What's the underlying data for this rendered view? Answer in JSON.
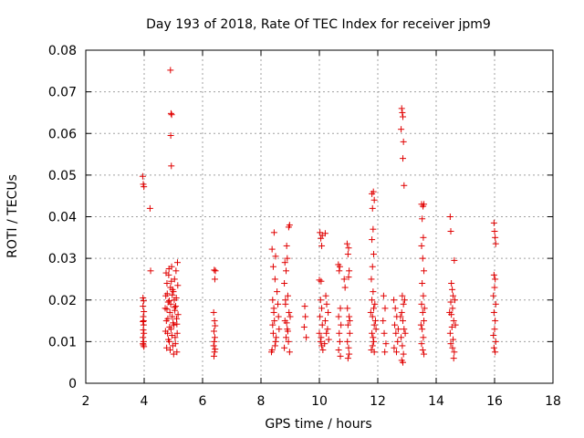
{
  "chart_data": {
    "type": "scatter",
    "title": "Day 193 of 2018, Rate Of TEC Index for receiver jpm9",
    "xlabel": "GPS time / hours",
    "ylabel": "ROTI / TECUs",
    "xlim": [
      2,
      18
    ],
    "ylim": [
      0,
      0.08
    ],
    "xticks": [
      2,
      4,
      6,
      8,
      10,
      12,
      14,
      16,
      18
    ],
    "yticks": [
      0,
      0.01,
      0.02,
      0.03,
      0.04,
      0.05,
      0.06,
      0.07,
      0.08
    ],
    "xtick_labels": [
      "2",
      "4",
      "6",
      "8",
      "10",
      "12",
      "14",
      "16",
      "18"
    ],
    "ytick_labels": [
      "0",
      "0.01",
      "0.02",
      "0.03",
      "0.04",
      "0.05",
      "0.06",
      "0.07",
      "0.08"
    ],
    "grid": true,
    "marker": "+",
    "color": "#e00000",
    "series": [
      {
        "name": "ROTI",
        "points": [
          [
            3.95,
            0.0497
          ],
          [
            3.97,
            0.0478
          ],
          [
            3.99,
            0.0472
          ],
          [
            3.96,
            0.0205
          ],
          [
            3.98,
            0.0198
          ],
          [
            3.96,
            0.0185
          ],
          [
            3.99,
            0.0172
          ],
          [
            3.97,
            0.016
          ],
          [
            3.96,
            0.0148
          ],
          [
            3.98,
            0.014
          ],
          [
            3.97,
            0.0128
          ],
          [
            3.99,
            0.012
          ],
          [
            3.96,
            0.011
          ],
          [
            3.98,
            0.01
          ],
          [
            3.97,
            0.0092
          ],
          [
            3.99,
            0.0088
          ],
          [
            3.96,
            0.0095
          ],
          [
            3.98,
            0.015
          ],
          [
            4.2,
            0.042
          ],
          [
            4.22,
            0.027
          ],
          [
            4.9,
            0.0752
          ],
          [
            4.92,
            0.0648
          ],
          [
            4.94,
            0.0645
          ],
          [
            4.91,
            0.0595
          ],
          [
            4.93,
            0.0522
          ],
          [
            4.72,
            0.018
          ],
          [
            4.74,
            0.021
          ],
          [
            4.76,
            0.015
          ],
          [
            4.78,
            0.024
          ],
          [
            4.8,
            0.012
          ],
          [
            4.82,
            0.0195
          ],
          [
            4.84,
            0.026
          ],
          [
            4.86,
            0.01
          ],
          [
            4.88,
            0.017
          ],
          [
            4.9,
            0.023
          ],
          [
            4.92,
            0.013
          ],
          [
            4.94,
            0.028
          ],
          [
            4.96,
            0.016
          ],
          [
            4.98,
            0.009
          ],
          [
            5.0,
            0.022
          ],
          [
            5.02,
            0.014
          ],
          [
            5.04,
            0.025
          ],
          [
            5.06,
            0.011
          ],
          [
            5.08,
            0.0185
          ],
          [
            5.1,
            0.0205
          ],
          [
            5.12,
            0.0075
          ],
          [
            5.14,
            0.029
          ],
          [
            5.16,
            0.0165
          ],
          [
            4.73,
            0.0125
          ],
          [
            4.75,
            0.0265
          ],
          [
            4.77,
            0.0085
          ],
          [
            4.79,
            0.0215
          ],
          [
            4.81,
            0.0155
          ],
          [
            4.83,
            0.0105
          ],
          [
            4.85,
            0.0275
          ],
          [
            4.87,
            0.0135
          ],
          [
            4.89,
            0.008
          ],
          [
            4.91,
            0.019
          ],
          [
            4.93,
            0.0245
          ],
          [
            4.95,
            0.0115
          ],
          [
            4.97,
            0.0225
          ],
          [
            4.99,
            0.0145
          ],
          [
            5.01,
            0.007
          ],
          [
            5.03,
            0.02
          ],
          [
            5.05,
            0.0175
          ],
          [
            5.07,
            0.0095
          ],
          [
            5.09,
            0.027
          ],
          [
            5.11,
            0.0155
          ],
          [
            5.13,
            0.012
          ],
          [
            5.15,
            0.0235
          ],
          [
            4.78,
            0.0178
          ],
          [
            4.86,
            0.0198
          ],
          [
            4.96,
            0.0212
          ],
          [
            5.04,
            0.0182
          ],
          [
            5.12,
            0.0142
          ],
          [
            6.4,
            0.0272
          ],
          [
            6.42,
            0.025
          ],
          [
            6.38,
            0.017
          ],
          [
            6.41,
            0.015
          ],
          [
            6.43,
            0.0138
          ],
          [
            6.39,
            0.0125
          ],
          [
            6.42,
            0.011
          ],
          [
            6.4,
            0.01
          ],
          [
            6.38,
            0.009
          ],
          [
            6.43,
            0.0082
          ],
          [
            6.41,
            0.0075
          ],
          [
            6.39,
            0.0065
          ],
          [
            6.44,
            0.027
          ],
          [
            8.38,
            0.0322
          ],
          [
            8.45,
            0.0362
          ],
          [
            8.5,
            0.0305
          ],
          [
            8.42,
            0.028
          ],
          [
            8.48,
            0.025
          ],
          [
            8.4,
            0.02
          ],
          [
            8.44,
            0.018
          ],
          [
            8.46,
            0.015
          ],
          [
            8.42,
            0.012
          ],
          [
            8.5,
            0.01
          ],
          [
            8.38,
            0.008
          ],
          [
            8.55,
            0.022
          ],
          [
            8.6,
            0.016
          ],
          [
            8.4,
            0.014
          ],
          [
            8.52,
            0.011
          ],
          [
            8.48,
            0.009
          ],
          [
            8.58,
            0.019
          ],
          [
            8.44,
            0.017
          ],
          [
            8.62,
            0.013
          ],
          [
            8.36,
            0.0075
          ],
          [
            8.82,
            0.029
          ],
          [
            8.88,
            0.033
          ],
          [
            8.95,
            0.0375
          ],
          [
            8.98,
            0.038
          ],
          [
            8.9,
            0.03
          ],
          [
            8.86,
            0.027
          ],
          [
            8.8,
            0.024
          ],
          [
            8.92,
            0.021
          ],
          [
            8.84,
            0.019
          ],
          [
            8.96,
            0.017
          ],
          [
            8.82,
            0.015
          ],
          [
            8.9,
            0.013
          ],
          [
            8.86,
            0.011
          ],
          [
            8.94,
            0.01
          ],
          [
            8.8,
            0.0085
          ],
          [
            8.98,
            0.0075
          ],
          [
            9.0,
            0.016
          ],
          [
            8.88,
            0.0145
          ],
          [
            8.92,
            0.0125
          ],
          [
            8.84,
            0.02
          ],
          [
            9.5,
            0.0185
          ],
          [
            9.52,
            0.016
          ],
          [
            9.48,
            0.0135
          ],
          [
            9.55,
            0.011
          ],
          [
            10.02,
            0.0362
          ],
          [
            10.05,
            0.0348
          ],
          [
            10.08,
            0.033
          ],
          [
            10.1,
            0.0355
          ],
          [
            10.2,
            0.036
          ],
          [
            10.0,
            0.0248
          ],
          [
            10.06,
            0.0245
          ],
          [
            10.04,
            0.02
          ],
          [
            10.08,
            0.018
          ],
          [
            10.02,
            0.016
          ],
          [
            10.1,
            0.014
          ],
          [
            10.0,
            0.012
          ],
          [
            10.06,
            0.011
          ],
          [
            10.04,
            0.01
          ],
          [
            10.08,
            0.009
          ],
          [
            10.12,
            0.008
          ],
          [
            10.22,
            0.021
          ],
          [
            10.25,
            0.019
          ],
          [
            10.3,
            0.017
          ],
          [
            10.2,
            0.015
          ],
          [
            10.28,
            0.013
          ],
          [
            10.24,
            0.012
          ],
          [
            10.32,
            0.0105
          ],
          [
            10.18,
            0.0095
          ],
          [
            10.65,
            0.0285
          ],
          [
            10.7,
            0.028
          ],
          [
            10.68,
            0.027
          ],
          [
            10.72,
            0.018
          ],
          [
            10.66,
            0.016
          ],
          [
            10.74,
            0.014
          ],
          [
            10.68,
            0.012
          ],
          [
            10.7,
            0.01
          ],
          [
            10.66,
            0.008
          ],
          [
            10.72,
            0.0065
          ],
          [
            10.85,
            0.025
          ],
          [
            10.88,
            0.023
          ],
          [
            10.95,
            0.0335
          ],
          [
            11.0,
            0.0325
          ],
          [
            10.98,
            0.031
          ],
          [
            11.02,
            0.027
          ],
          [
            11.0,
            0.0255
          ],
          [
            10.96,
            0.018
          ],
          [
            11.02,
            0.016
          ],
          [
            10.98,
            0.014
          ],
          [
            11.04,
            0.012
          ],
          [
            10.96,
            0.01
          ],
          [
            11.0,
            0.0085
          ],
          [
            11.02,
            0.007
          ],
          [
            10.98,
            0.006
          ],
          [
            11.04,
            0.015
          ],
          [
            11.8,
            0.0455
          ],
          [
            11.85,
            0.046
          ],
          [
            11.88,
            0.044
          ],
          [
            11.82,
            0.042
          ],
          [
            11.84,
            0.037
          ],
          [
            11.8,
            0.0345
          ],
          [
            11.86,
            0.031
          ],
          [
            11.82,
            0.028
          ],
          [
            11.78,
            0.025
          ],
          [
            11.84,
            0.022
          ],
          [
            11.8,
            0.02
          ],
          [
            11.86,
            0.018
          ],
          [
            11.82,
            0.016
          ],
          [
            11.88,
            0.014
          ],
          [
            11.8,
            0.012
          ],
          [
            11.84,
            0.011
          ],
          [
            11.86,
            0.01
          ],
          [
            11.82,
            0.009
          ],
          [
            11.78,
            0.008
          ],
          [
            11.88,
            0.0075
          ],
          [
            11.9,
            0.019
          ],
          [
            11.92,
            0.015
          ],
          [
            11.76,
            0.017
          ],
          [
            11.94,
            0.013
          ],
          [
            12.2,
            0.021
          ],
          [
            12.25,
            0.018
          ],
          [
            12.18,
            0.015
          ],
          [
            12.22,
            0.012
          ],
          [
            12.28,
            0.0095
          ],
          [
            12.24,
            0.0075
          ],
          [
            12.55,
            0.02
          ],
          [
            12.6,
            0.018
          ],
          [
            12.65,
            0.016
          ],
          [
            12.58,
            0.014
          ],
          [
            12.62,
            0.012
          ],
          [
            12.68,
            0.01
          ],
          [
            12.56,
            0.0085
          ],
          [
            12.64,
            0.0075
          ],
          [
            12.7,
            0.013
          ],
          [
            12.82,
            0.066
          ],
          [
            12.84,
            0.065
          ],
          [
            12.86,
            0.064
          ],
          [
            12.8,
            0.061
          ],
          [
            12.88,
            0.058
          ],
          [
            12.86,
            0.054
          ],
          [
            12.9,
            0.0475
          ],
          [
            12.84,
            0.021
          ],
          [
            12.88,
            0.019
          ],
          [
            12.82,
            0.017
          ],
          [
            12.86,
            0.015
          ],
          [
            12.9,
            0.013
          ],
          [
            12.8,
            0.011
          ],
          [
            12.84,
            0.009
          ],
          [
            12.88,
            0.007
          ],
          [
            12.82,
            0.0055
          ],
          [
            12.86,
            0.005
          ],
          [
            12.92,
            0.02
          ],
          [
            12.78,
            0.016
          ],
          [
            12.94,
            0.012
          ],
          [
            13.5,
            0.043
          ],
          [
            13.55,
            0.0425
          ],
          [
            13.58,
            0.043
          ],
          [
            13.52,
            0.0395
          ],
          [
            13.56,
            0.035
          ],
          [
            13.5,
            0.033
          ],
          [
            13.54,
            0.03
          ],
          [
            13.58,
            0.027
          ],
          [
            13.52,
            0.024
          ],
          [
            13.56,
            0.021
          ],
          [
            13.5,
            0.019
          ],
          [
            13.54,
            0.017
          ],
          [
            13.58,
            0.015
          ],
          [
            13.52,
            0.013
          ],
          [
            13.56,
            0.011
          ],
          [
            13.5,
            0.0095
          ],
          [
            13.54,
            0.008
          ],
          [
            13.58,
            0.007
          ],
          [
            13.6,
            0.018
          ],
          [
            13.48,
            0.014
          ],
          [
            14.48,
            0.04
          ],
          [
            14.5,
            0.0365
          ],
          [
            14.62,
            0.0295
          ],
          [
            14.52,
            0.024
          ],
          [
            14.55,
            0.0225
          ],
          [
            14.58,
            0.021
          ],
          [
            14.5,
            0.0195
          ],
          [
            14.56,
            0.018
          ],
          [
            14.52,
            0.0165
          ],
          [
            14.6,
            0.015
          ],
          [
            14.54,
            0.0135
          ],
          [
            14.48,
            0.012
          ],
          [
            14.58,
            0.0105
          ],
          [
            14.5,
            0.0095
          ],
          [
            14.56,
            0.0085
          ],
          [
            14.62,
            0.0075
          ],
          [
            14.6,
            0.006
          ],
          [
            14.64,
            0.02
          ],
          [
            14.46,
            0.017
          ],
          [
            14.66,
            0.014
          ],
          [
            15.98,
            0.0385
          ],
          [
            16.0,
            0.0365
          ],
          [
            16.02,
            0.035
          ],
          [
            16.04,
            0.0335
          ],
          [
            15.98,
            0.026
          ],
          [
            16.02,
            0.025
          ],
          [
            16.0,
            0.023
          ],
          [
            15.96,
            0.021
          ],
          [
            16.04,
            0.019
          ],
          [
            15.98,
            0.017
          ],
          [
            16.02,
            0.015
          ],
          [
            16.0,
            0.013
          ],
          [
            15.96,
            0.0115
          ],
          [
            16.04,
            0.01
          ],
          [
            15.98,
            0.0085
          ],
          [
            16.02,
            0.0075
          ]
        ]
      }
    ]
  }
}
